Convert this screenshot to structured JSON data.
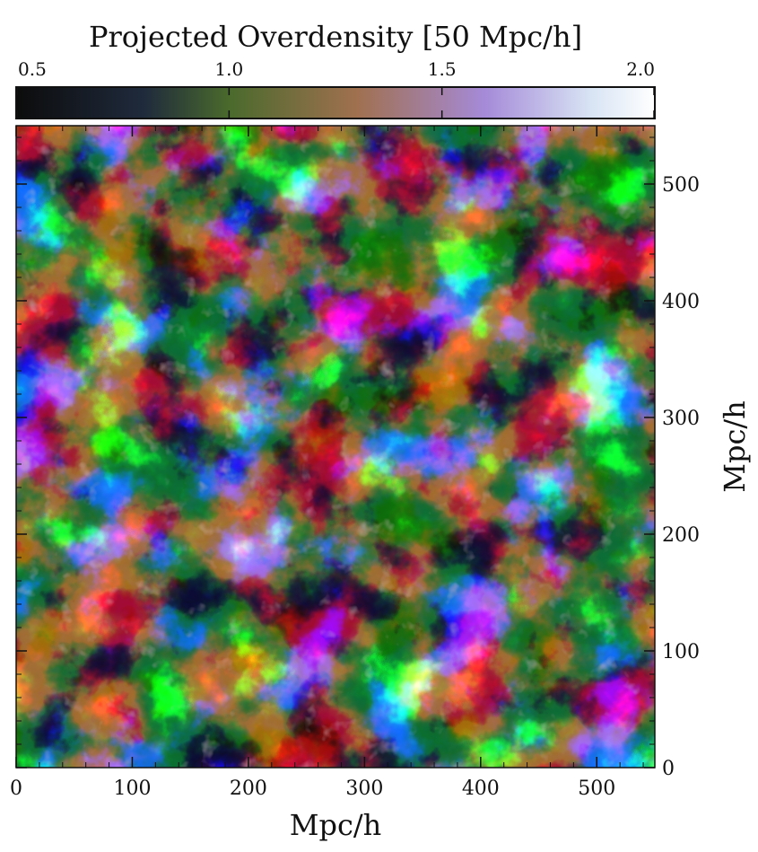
{
  "chart_data": {
    "type": "heatmap",
    "title": "Projected Overdensity [50 Mpc/h]",
    "xlabel": "Mpc/h",
    "ylabel": "Mpc/h",
    "xlim": [
      0,
      550
    ],
    "ylim": [
      0,
      550
    ],
    "xticks": [
      0,
      100,
      200,
      300,
      400,
      500
    ],
    "yticks": [
      0,
      100,
      200,
      300,
      400,
      500
    ],
    "xtick_labels": [
      "0",
      "100",
      "200",
      "300",
      "400",
      "500"
    ],
    "ytick_labels": [
      "0",
      "100",
      "200",
      "300",
      "400",
      "500"
    ],
    "colorbar": {
      "label": "Projected Overdensity [50 Mpc/h]",
      "range": [
        0.5,
        2.0
      ],
      "ticks": [
        0.5,
        1.0,
        1.5,
        2.0
      ],
      "tick_labels": [
        "0.5",
        "1.0",
        "1.5",
        "2.0"
      ],
      "placement": "top",
      "colormap_stops": [
        {
          "value": 0.5,
          "color": "#0c0c0c"
        },
        {
          "value": 0.8,
          "color": "#1f2a3c"
        },
        {
          "value": 1.0,
          "color": "#4a6a2c"
        },
        {
          "value": 1.3,
          "color": "#a0704f"
        },
        {
          "value": 1.6,
          "color": "#a58ad8"
        },
        {
          "value": 1.85,
          "color": "#d8e4f4"
        },
        {
          "value": 2.0,
          "color": "#ffffff"
        }
      ]
    },
    "y_axis_side": "right",
    "field_description": "density field: dark voids, green sheets, pink-white filament knots"
  }
}
